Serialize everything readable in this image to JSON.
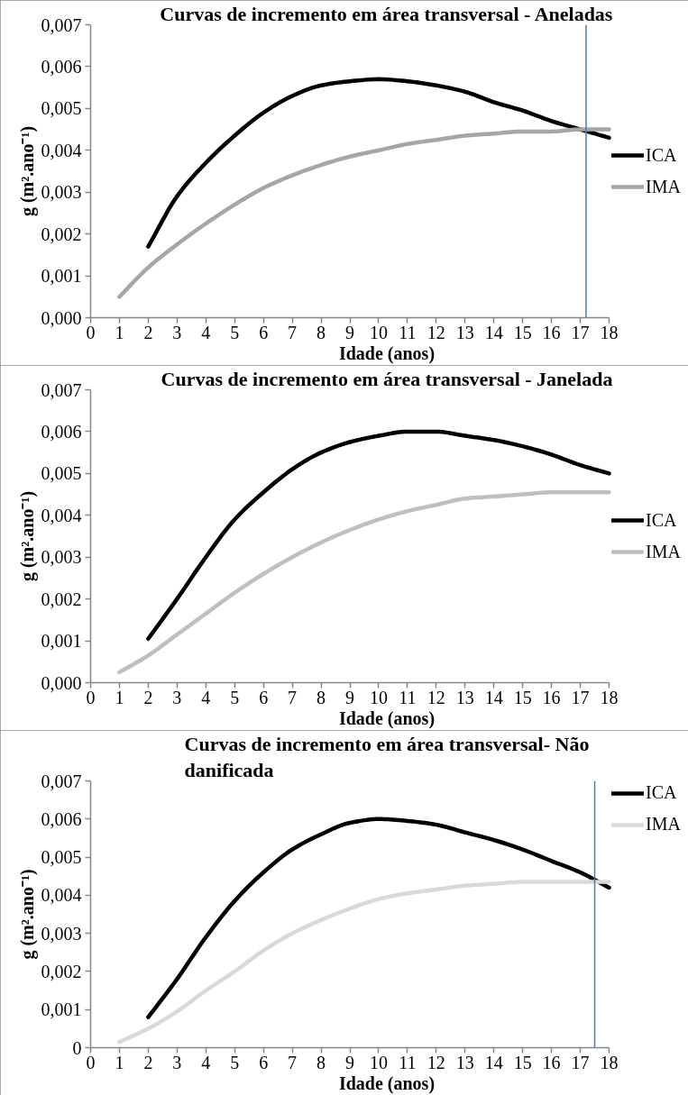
{
  "chart_data": [
    {
      "type": "line",
      "title": "Curvas de incremento em área transversal - Aneladas",
      "xlabel": "Idade (anos)",
      "ylabel": "g (m².ano⁻¹)",
      "x": [
        1,
        2,
        3,
        4,
        5,
        6,
        7,
        8,
        9,
        10,
        11,
        12,
        13,
        14,
        15,
        16,
        17,
        18
      ],
      "series": [
        {
          "name": "ICA",
          "color": "#000000",
          "values": [
            null,
            0.0017,
            0.0029,
            0.0037,
            0.00435,
            0.0049,
            0.0053,
            0.00555,
            0.00565,
            0.0057,
            0.00565,
            0.00555,
            0.0054,
            0.00515,
            0.00495,
            0.0047,
            0.0045,
            0.0043
          ]
        },
        {
          "name": "IMA",
          "color": "#a6a6a6",
          "values": [
            0.0005,
            0.0012,
            0.00175,
            0.00225,
            0.0027,
            0.0031,
            0.0034,
            0.00365,
            0.00385,
            0.004,
            0.00415,
            0.00425,
            0.00435,
            0.0044,
            0.00445,
            0.00445,
            0.0045,
            0.0045
          ]
        }
      ],
      "xlim": [
        0,
        18
      ],
      "xticks": [
        0,
        1,
        2,
        3,
        4,
        5,
        6,
        7,
        8,
        9,
        10,
        11,
        12,
        13,
        14,
        15,
        16,
        17,
        18
      ],
      "ylim": [
        0,
        0.007
      ],
      "yticks": [
        {
          "value": 0,
          "label": "0,000"
        },
        {
          "value": 0.001,
          "label": "0,001"
        },
        {
          "value": 0.002,
          "label": "0,002"
        },
        {
          "value": 0.003,
          "label": "0,003"
        },
        {
          "value": 0.004,
          "label": "0,004"
        },
        {
          "value": 0.005,
          "label": "0,005"
        },
        {
          "value": 0.006,
          "label": "0,006"
        },
        {
          "value": 0.007,
          "label": "0,007"
        }
      ],
      "legend": "right",
      "ref_lines": [
        {
          "axis": "x",
          "value": 17.2,
          "color": "#4a7ebb"
        }
      ]
    },
    {
      "type": "line",
      "title": "Curvas de incremento em área transversal - Janelada",
      "xlabel": "Idade (anos)",
      "ylabel": "g (m².ano⁻¹)",
      "x": [
        1,
        2,
        3,
        4,
        5,
        6,
        7,
        8,
        9,
        10,
        11,
        12,
        13,
        14,
        15,
        16,
        17,
        18
      ],
      "series": [
        {
          "name": "ICA",
          "color": "#000000",
          "values": [
            null,
            0.00105,
            0.002,
            0.003,
            0.0039,
            0.00455,
            0.0051,
            0.0055,
            0.00575,
            0.0059,
            0.006,
            0.006,
            0.0059,
            0.0058,
            0.00565,
            0.00545,
            0.0052,
            0.005
          ]
        },
        {
          "name": "IMA",
          "color": "#bfbfbf",
          "values": [
            0.00025,
            0.00065,
            0.00115,
            0.00165,
            0.00215,
            0.0026,
            0.003,
            0.00335,
            0.00365,
            0.0039,
            0.0041,
            0.00425,
            0.0044,
            0.00445,
            0.0045,
            0.00455,
            0.00455,
            0.00455
          ]
        }
      ],
      "xlim": [
        0,
        18
      ],
      "xticks": [
        0,
        1,
        2,
        3,
        4,
        5,
        6,
        7,
        8,
        9,
        10,
        11,
        12,
        13,
        14,
        15,
        16,
        17,
        18
      ],
      "ylim": [
        0,
        0.007
      ],
      "yticks": [
        {
          "value": 0,
          "label": "0,000"
        },
        {
          "value": 0.001,
          "label": "0,001"
        },
        {
          "value": 0.002,
          "label": "0,002"
        },
        {
          "value": 0.003,
          "label": "0,003"
        },
        {
          "value": 0.004,
          "label": "0,004"
        },
        {
          "value": 0.005,
          "label": "0,005"
        },
        {
          "value": 0.006,
          "label": "0,006"
        },
        {
          "value": 0.007,
          "label": "0,007"
        }
      ],
      "legend": "right"
    },
    {
      "type": "line",
      "title": "Curvas de incremento em área transversal- Não danificada",
      "xlabel": "Idade (anos)",
      "ylabel": "g (m².ano⁻¹)",
      "x": [
        1,
        2,
        3,
        4,
        5,
        6,
        7,
        8,
        9,
        10,
        11,
        12,
        13,
        14,
        15,
        16,
        17,
        18
      ],
      "series": [
        {
          "name": "ICA",
          "color": "#000000",
          "values": [
            null,
            0.0008,
            0.0018,
            0.0029,
            0.00385,
            0.0046,
            0.0052,
            0.0056,
            0.0059,
            0.006,
            0.00595,
            0.00585,
            0.00565,
            0.00545,
            0.0052,
            0.0049,
            0.0046,
            0.0042
          ]
        },
        {
          "name": "IMA",
          "color": "#d9d9d9",
          "values": [
            0.00015,
            0.0005,
            0.00095,
            0.0015,
            0.002,
            0.00255,
            0.003,
            0.00335,
            0.00365,
            0.0039,
            0.00405,
            0.00415,
            0.00425,
            0.0043,
            0.00435,
            0.00435,
            0.00435,
            0.00435
          ]
        }
      ],
      "xlim": [
        0,
        18
      ],
      "xticks": [
        0,
        1,
        2,
        3,
        4,
        5,
        6,
        7,
        8,
        9,
        10,
        11,
        12,
        13,
        14,
        15,
        16,
        17,
        18
      ],
      "ylim": [
        0,
        0.007
      ],
      "yticks": [
        {
          "value": 0,
          "label": "0"
        },
        {
          "value": 0.001,
          "label": "0,001"
        },
        {
          "value": 0.002,
          "label": "0,002"
        },
        {
          "value": 0.003,
          "label": "0,003"
        },
        {
          "value": 0.004,
          "label": "0,004"
        },
        {
          "value": 0.005,
          "label": "0,005"
        },
        {
          "value": 0.006,
          "label": "0,006"
        },
        {
          "value": 0.007,
          "label": "0,007"
        }
      ],
      "legend": "top right",
      "ref_lines": [
        {
          "axis": "x",
          "value": 17.5,
          "color": "#4a7ebb"
        }
      ]
    }
  ]
}
